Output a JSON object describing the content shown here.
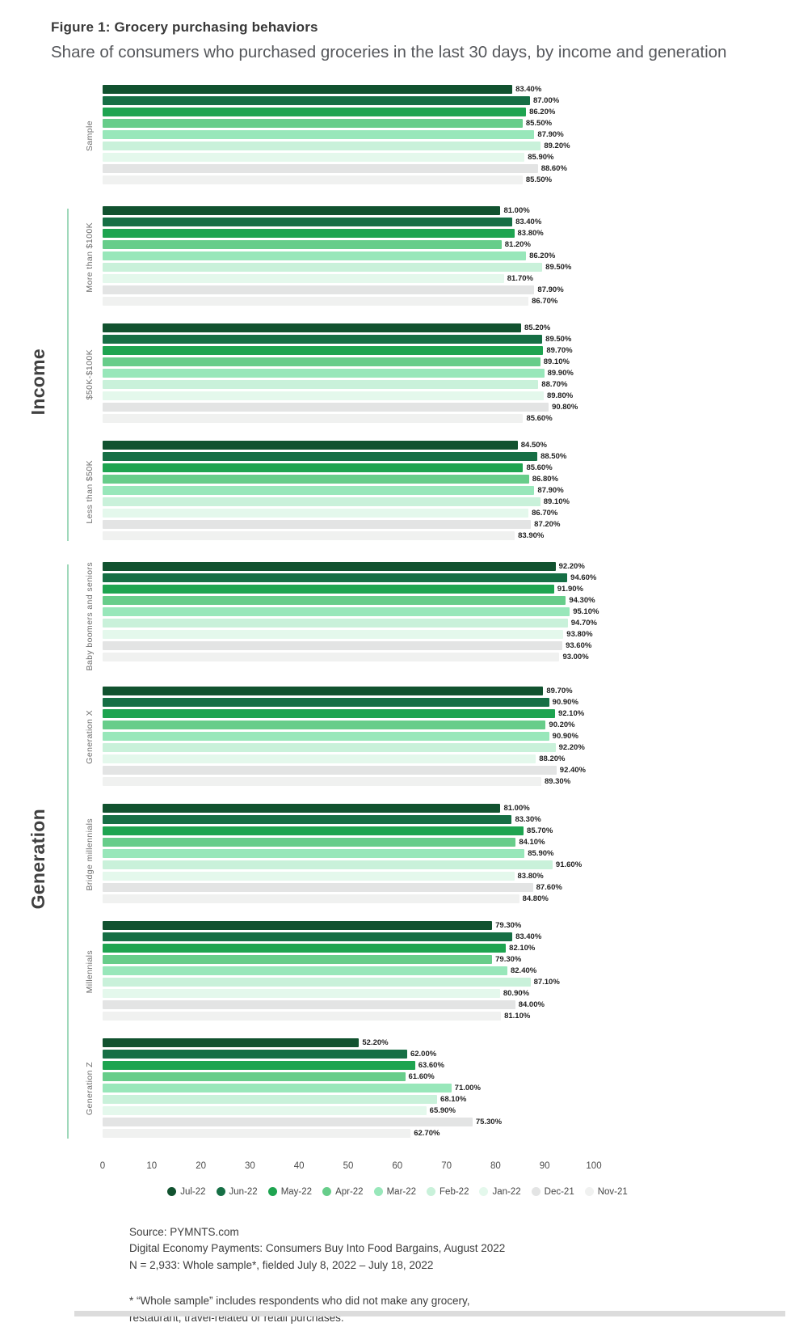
{
  "chart_data": {
    "type": "bar",
    "orientation": "horizontal",
    "title": "Figure 1: Grocery purchasing behaviors",
    "subtitle": "Share of consumers who purchased groceries in the last 30 days, by income and generation",
    "value_unit": "%",
    "xlim": [
      0,
      100
    ],
    "x_ticks": [
      0,
      10,
      20,
      30,
      40,
      50,
      60,
      70,
      80,
      90,
      100
    ],
    "grid": false,
    "legend_position": "bottom",
    "series": [
      {
        "name": "Jul-22",
        "color": "#11522f"
      },
      {
        "name": "Jun-22",
        "color": "#166f45"
      },
      {
        "name": "May-22",
        "color": "#1ea450"
      },
      {
        "name": "Apr-22",
        "color": "#67cd8a"
      },
      {
        "name": "Mar-22",
        "color": "#98e7ba"
      },
      {
        "name": "Feb-22",
        "color": "#c9f1da"
      },
      {
        "name": "Jan-22",
        "color": "#e4f8ec"
      },
      {
        "name": "Dec-21",
        "color": "#e3e4e4"
      },
      {
        "name": "Nov-21",
        "color": "#f0f1f0"
      }
    ],
    "sections": [
      {
        "label": "",
        "groups": [
          {
            "label": "Sample",
            "values": [
              83.4,
              87.0,
              86.2,
              85.5,
              87.9,
              89.2,
              85.9,
              88.6,
              85.5
            ]
          }
        ]
      },
      {
        "label": "Income",
        "groups": [
          {
            "label": "More than $100K",
            "values": [
              81.0,
              83.4,
              83.8,
              81.2,
              86.2,
              89.5,
              81.7,
              87.9,
              86.7
            ]
          },
          {
            "label": "$50K-$100K",
            "values": [
              85.2,
              89.5,
              89.7,
              89.1,
              89.9,
              88.7,
              89.8,
              90.8,
              85.6
            ]
          },
          {
            "label": "Less than $50K",
            "values": [
              84.5,
              88.5,
              85.6,
              86.8,
              87.9,
              89.1,
              86.7,
              87.2,
              83.9
            ]
          }
        ]
      },
      {
        "label": "Generation",
        "groups": [
          {
            "label": "Baby boomers and seniors",
            "values": [
              92.2,
              94.6,
              91.9,
              94.3,
              95.1,
              94.7,
              93.8,
              93.6,
              93.0
            ]
          },
          {
            "label": "Generation X",
            "values": [
              89.7,
              90.9,
              92.1,
              90.2,
              90.9,
              92.2,
              88.2,
              92.4,
              89.3
            ]
          },
          {
            "label": "Bridge millennials",
            "values": [
              81.0,
              83.3,
              85.7,
              84.1,
              85.9,
              91.6,
              83.8,
              87.6,
              84.8
            ]
          },
          {
            "label": "Millennials",
            "values": [
              79.3,
              83.4,
              82.1,
              79.3,
              82.4,
              87.1,
              80.9,
              84.0,
              81.1
            ]
          },
          {
            "label": "Generation Z",
            "values": [
              52.2,
              62.0,
              63.6,
              61.6,
              71.0,
              68.1,
              65.9,
              75.3,
              62.7
            ]
          }
        ]
      }
    ]
  },
  "footer": {
    "source_lines": [
      "Source: PYMNTS.com",
      "Digital Economy Payments: Consumers Buy Into Food Bargains, August 2022",
      "N = 2,933: Whole sample*, fielded July 8, 2022 – July 18, 2022"
    ],
    "footnote_lines": [
      "* “Whole sample” includes respondents who did not make any grocery,",
      "restaurant, travel-related or retail purchases."
    ]
  }
}
